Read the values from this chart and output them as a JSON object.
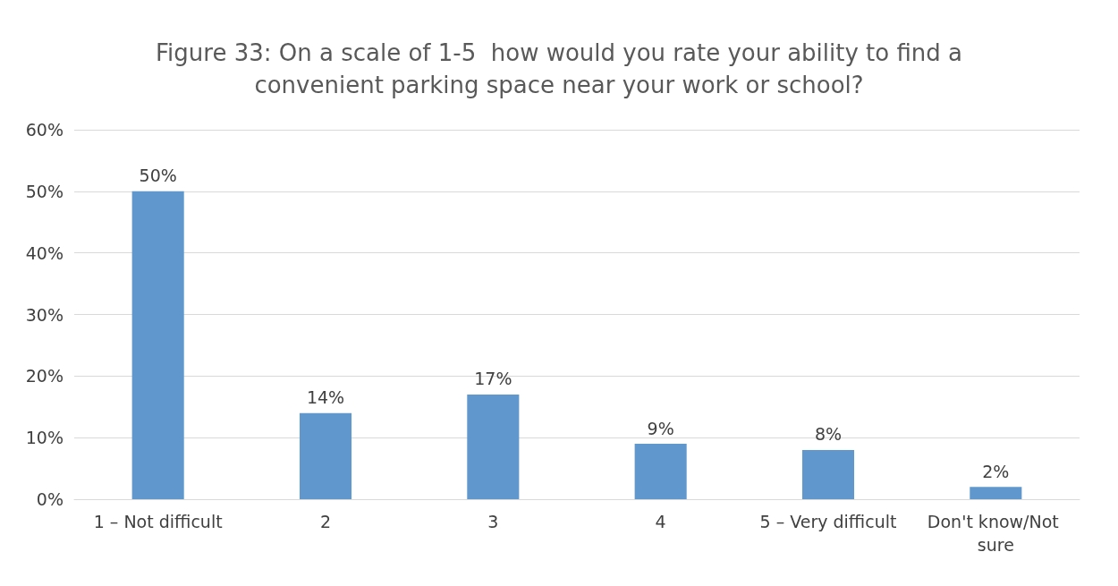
{
  "chart_data": {
    "type": "bar",
    "title": "Figure 33: On a scale of 1-5  how would you rate your ability to find a\nconvenient parking space near your work or school?",
    "categories": [
      "1 – Not difficult",
      "2",
      "3",
      "4",
      "5 – Very difficult",
      "Don't know/Not sure"
    ],
    "values": [
      50,
      14,
      17,
      9,
      8,
      2
    ],
    "value_labels": [
      "50%",
      "14%",
      "17%",
      "9%",
      "8%",
      "2%"
    ],
    "color": "#6097cc",
    "ylim": [
      0,
      60
    ],
    "yticks": [
      {
        "value": 0,
        "label": "0%"
      },
      {
        "value": 10,
        "label": "10%"
      },
      {
        "value": 20,
        "label": "20%"
      },
      {
        "value": 30,
        "label": "30%"
      },
      {
        "value": 40,
        "label": "40%"
      },
      {
        "value": 50,
        "label": "50%"
      },
      {
        "value": 60,
        "label": "60%"
      }
    ],
    "grid": "y"
  }
}
